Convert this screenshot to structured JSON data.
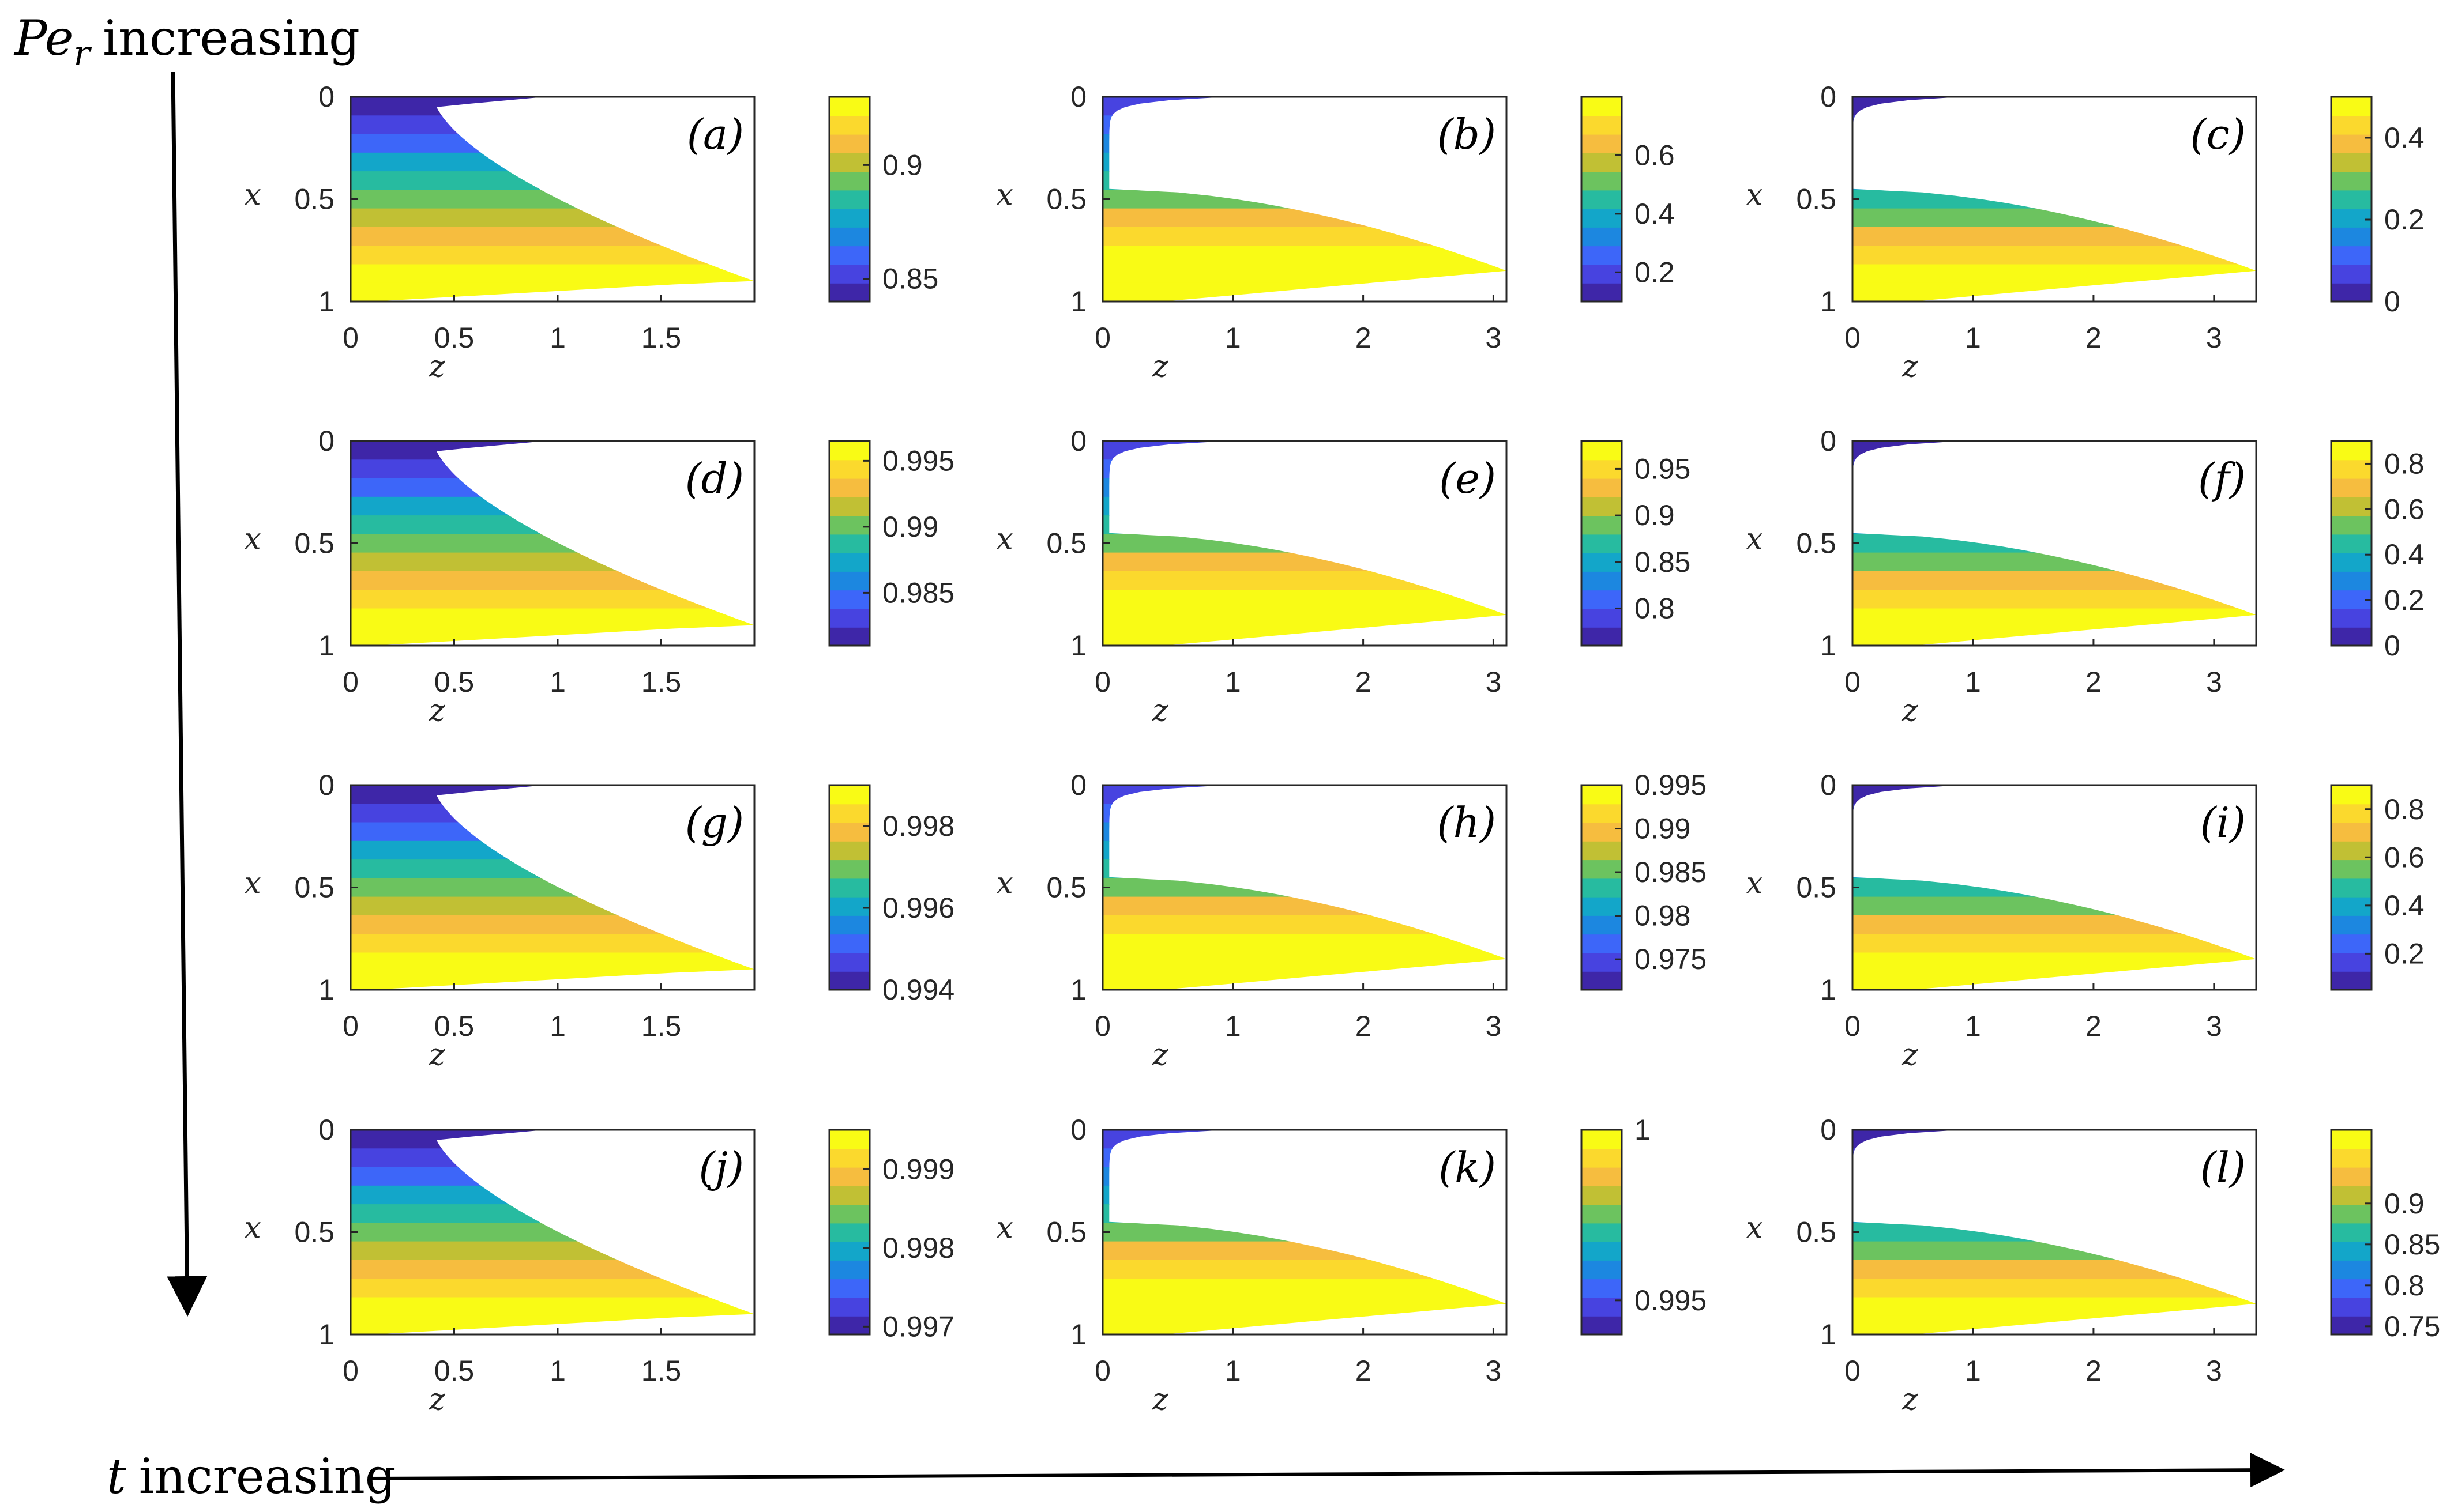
{
  "annotations": {
    "vertical_arrow_sym": "Pe",
    "vertical_arrow_sub": "r",
    "vertical_arrow_text": "increasing",
    "horizontal_arrow_sym": "t",
    "horizontal_arrow_text": "increasing"
  },
  "colormap": [
    "#3e26a8",
    "#4743e0",
    "#3d66f9",
    "#1c87e0",
    "#13a6c9",
    "#27bba0",
    "#6cc35f",
    "#c1c034",
    "#f6bd3f",
    "#fbd92d",
    "#f9fb15"
  ],
  "chart_data": [
    {
      "id": "a",
      "label": "(a)",
      "type": "heatmap",
      "xlabel": "z",
      "ylabel": "x",
      "xlim": [
        0,
        1.95
      ],
      "ylim": [
        0,
        1
      ],
      "xticks": [
        "0",
        "0.5",
        "1",
        "1.5"
      ],
      "xtick_values": [
        0,
        0.5,
        1,
        1.5
      ],
      "yticks": [
        "0",
        "0.5",
        "1"
      ],
      "yticks_values": [
        0,
        0.5,
        1
      ],
      "z_front_max": 1.95,
      "z_front_min": 0.4,
      "x_tip": 0.9,
      "colorbar": {
        "min": 0.84,
        "max": 0.93,
        "ticks": [
          "0.85",
          "0.9"
        ],
        "tick_values": [
          0.85,
          0.9
        ]
      }
    },
    {
      "id": "b",
      "label": "(b)",
      "type": "heatmap",
      "xlabel": "z",
      "ylabel": "x",
      "xlim": [
        0,
        3.1
      ],
      "ylim": [
        0,
        1
      ],
      "xticks": [
        "0",
        "1",
        "2",
        "3"
      ],
      "xtick_values": [
        0,
        1,
        2,
        3
      ],
      "yticks": [
        "0",
        "0.5",
        "1"
      ],
      "yticks_values": [
        0,
        0.5,
        1
      ],
      "z_front_max": 3.1,
      "z_front_min": 0.05,
      "x_tip": 0.85,
      "colorbar": {
        "min": 0.1,
        "max": 0.8,
        "ticks": [
          "0.2",
          "0.4",
          "0.6"
        ],
        "tick_values": [
          0.2,
          0.4,
          0.6
        ]
      }
    },
    {
      "id": "c",
      "label": "(c)",
      "type": "heatmap",
      "xlabel": "z",
      "ylabel": "x",
      "xlim": [
        0,
        3.35
      ],
      "ylim": [
        0,
        1
      ],
      "xticks": [
        "0",
        "1",
        "2",
        "3"
      ],
      "xtick_values": [
        0,
        1,
        2,
        3
      ],
      "yticks": [
        "0",
        "0.5",
        "1"
      ],
      "yticks_values": [
        0,
        0.5,
        1
      ],
      "z_front_max": 3.35,
      "z_front_min": 0.0,
      "x_tip": 0.85,
      "colorbar": {
        "min": 0,
        "max": 0.5,
        "ticks": [
          "0",
          "0.2",
          "0.4"
        ],
        "tick_values": [
          0,
          0.2,
          0.4
        ]
      }
    },
    {
      "id": "d",
      "label": "(d)",
      "type": "heatmap",
      "xlabel": "z",
      "ylabel": "x",
      "xlim": [
        0,
        1.95
      ],
      "ylim": [
        0,
        1
      ],
      "xticks": [
        "0",
        "0.5",
        "1",
        "1.5"
      ],
      "xtick_values": [
        0,
        0.5,
        1,
        1.5
      ],
      "yticks": [
        "0",
        "0.5",
        "1"
      ],
      "yticks_values": [
        0,
        0.5,
        1
      ],
      "z_front_max": 1.95,
      "z_front_min": 0.4,
      "x_tip": 0.9,
      "colorbar": {
        "min": 0.981,
        "max": 0.9965,
        "ticks": [
          "0.985",
          "0.99",
          "0.995"
        ],
        "tick_values": [
          0.985,
          0.99,
          0.995
        ]
      }
    },
    {
      "id": "e",
      "label": "(e)",
      "type": "heatmap",
      "xlabel": "z",
      "ylabel": "x",
      "xlim": [
        0,
        3.1
      ],
      "ylim": [
        0,
        1
      ],
      "xticks": [
        "0",
        "1",
        "2",
        "3"
      ],
      "xtick_values": [
        0,
        1,
        2,
        3
      ],
      "yticks": [
        "0",
        "0.5",
        "1"
      ],
      "yticks_values": [
        0,
        0.5,
        1
      ],
      "z_front_max": 3.1,
      "z_front_min": 0.05,
      "x_tip": 0.85,
      "colorbar": {
        "min": 0.76,
        "max": 0.98,
        "ticks": [
          "0.8",
          "0.85",
          "0.9",
          "0.95"
        ],
        "tick_values": [
          0.8,
          0.85,
          0.9,
          0.95
        ]
      }
    },
    {
      "id": "f",
      "label": "(f)",
      "type": "heatmap",
      "xlabel": "z",
      "ylabel": "x",
      "xlim": [
        0,
        3.35
      ],
      "ylim": [
        0,
        1
      ],
      "xticks": [
        "0",
        "1",
        "2",
        "3"
      ],
      "xtick_values": [
        0,
        1,
        2,
        3
      ],
      "yticks": [
        "0",
        "0.5",
        "1"
      ],
      "yticks_values": [
        0,
        0.5,
        1
      ],
      "z_front_max": 3.35,
      "z_front_min": 0.0,
      "x_tip": 0.85,
      "colorbar": {
        "min": 0,
        "max": 0.9,
        "ticks": [
          "0",
          "0.2",
          "0.4",
          "0.6",
          "0.8"
        ],
        "tick_values": [
          0,
          0.2,
          0.4,
          0.6,
          0.8
        ]
      }
    },
    {
      "id": "g",
      "label": "(g)",
      "type": "heatmap",
      "xlabel": "z",
      "ylabel": "x",
      "xlim": [
        0,
        1.95
      ],
      "ylim": [
        0,
        1
      ],
      "xticks": [
        "0",
        "0.5",
        "1",
        "1.5"
      ],
      "xtick_values": [
        0,
        0.5,
        1,
        1.5
      ],
      "yticks": [
        "0",
        "0.5",
        "1"
      ],
      "yticks_values": [
        0,
        0.5,
        1
      ],
      "z_front_max": 1.95,
      "z_front_min": 0.4,
      "x_tip": 0.9,
      "colorbar": {
        "min": 0.994,
        "max": 0.999,
        "ticks": [
          "0.994",
          "0.996",
          "0.998"
        ],
        "tick_values": [
          0.994,
          0.996,
          0.998
        ]
      }
    },
    {
      "id": "h",
      "label": "(h)",
      "type": "heatmap",
      "xlabel": "z",
      "ylabel": "x",
      "xlim": [
        0,
        3.1
      ],
      "ylim": [
        0,
        1
      ],
      "xticks": [
        "0",
        "1",
        "2",
        "3"
      ],
      "xtick_values": [
        0,
        1,
        2,
        3
      ],
      "yticks": [
        "0",
        "0.5",
        "1"
      ],
      "yticks_values": [
        0,
        0.5,
        1
      ],
      "z_front_max": 3.1,
      "z_front_min": 0.05,
      "x_tip": 0.85,
      "colorbar": {
        "min": 0.9715,
        "max": 0.995,
        "ticks": [
          "0.975",
          "0.98",
          "0.985",
          "0.99",
          "0.995"
        ],
        "tick_values": [
          0.975,
          0.98,
          0.985,
          0.99,
          0.995
        ]
      }
    },
    {
      "id": "i",
      "label": "(i)",
      "type": "heatmap",
      "xlabel": "z",
      "ylabel": "x",
      "xlim": [
        0,
        3.35
      ],
      "ylim": [
        0,
        1
      ],
      "xticks": [
        "0",
        "1",
        "2",
        "3"
      ],
      "xtick_values": [
        0,
        1,
        2,
        3
      ],
      "yticks": [
        "0",
        "0.5",
        "1"
      ],
      "yticks_values": [
        0,
        0.5,
        1
      ],
      "z_front_max": 3.35,
      "z_front_min": 0.0,
      "x_tip": 0.85,
      "colorbar": {
        "min": 0.05,
        "max": 0.9,
        "ticks": [
          "0.2",
          "0.4",
          "0.6",
          "0.8"
        ],
        "tick_values": [
          0.2,
          0.4,
          0.6,
          0.8
        ]
      }
    },
    {
      "id": "j",
      "label": "(j)",
      "type": "heatmap",
      "xlabel": "z",
      "ylabel": "x",
      "xlim": [
        0,
        1.95
      ],
      "ylim": [
        0,
        1
      ],
      "xticks": [
        "0",
        "0.5",
        "1",
        "1.5"
      ],
      "xtick_values": [
        0,
        0.5,
        1,
        1.5
      ],
      "yticks": [
        "0",
        "0.5",
        "1"
      ],
      "yticks_values": [
        0,
        0.5,
        1
      ],
      "z_front_max": 1.95,
      "z_front_min": 0.4,
      "x_tip": 0.9,
      "colorbar": {
        "min": 0.9969,
        "max": 0.9995,
        "ticks": [
          "0.997",
          "0.998",
          "0.999"
        ],
        "tick_values": [
          0.997,
          0.998,
          0.999
        ]
      }
    },
    {
      "id": "k",
      "label": "(k)",
      "type": "heatmap",
      "xlabel": "z",
      "ylabel": "x",
      "xlim": [
        0,
        3.1
      ],
      "ylim": [
        0,
        1
      ],
      "xticks": [
        "0",
        "1",
        "2",
        "3"
      ],
      "xtick_values": [
        0,
        1,
        2,
        3
      ],
      "yticks": [
        "0",
        "0.5",
        "1"
      ],
      "yticks_values": [
        0,
        0.5,
        1
      ],
      "z_front_max": 3.1,
      "z_front_min": 0.05,
      "x_tip": 0.85,
      "colorbar": {
        "min": 0.994,
        "max": 1.0,
        "ticks": [
          "0.995",
          "1"
        ],
        "tick_values": [
          0.995,
          1.0
        ]
      }
    },
    {
      "id": "l",
      "label": "(l)",
      "type": "heatmap",
      "xlabel": "z",
      "ylabel": "x",
      "xlim": [
        0,
        3.35
      ],
      "ylim": [
        0,
        1
      ],
      "xticks": [
        "0",
        "1",
        "2",
        "3"
      ],
      "xtick_values": [
        0,
        1,
        2,
        3
      ],
      "yticks": [
        "0",
        "0.5",
        "1"
      ],
      "yticks_values": [
        0,
        0.5,
        1
      ],
      "z_front_max": 3.35,
      "z_front_min": 0.0,
      "x_tip": 0.85,
      "colorbar": {
        "min": 0.74,
        "max": 0.99,
        "ticks": [
          "0.75",
          "0.8",
          "0.85",
          "0.9"
        ],
        "tick_values": [
          0.75,
          0.8,
          0.85,
          0.9
        ]
      }
    }
  ]
}
